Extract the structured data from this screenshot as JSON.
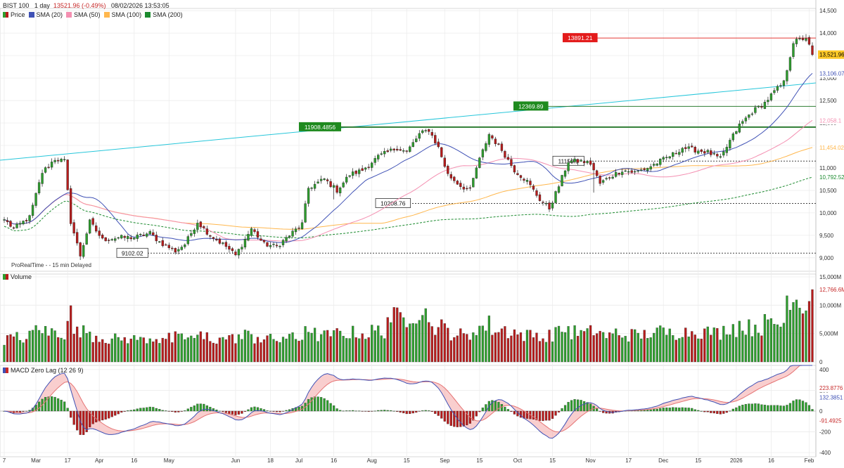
{
  "header": {
    "instrument": "BIST 100",
    "interval": "1 day",
    "last_change": "13521.96 (-0.49%)",
    "datetime": "08/02/2026 13:53:05"
  },
  "legend": [
    {
      "label": "Price",
      "color": "#2e7d32"
    },
    {
      "label": "SMA (20)",
      "color": "#3f51b5"
    },
    {
      "label": "SMA (50)",
      "color": "#f48fb1"
    },
    {
      "label": "SMA (100)",
      "color": "#ffb74d"
    },
    {
      "label": "SMA (200)",
      "color": "#1b8a2e"
    }
  ],
  "volume_legend": {
    "label": "Volume"
  },
  "macd_legend": {
    "label": "MACD Zero Lag (12 26 9)"
  },
  "source_note": "ProRealTime -  - 15 min Delayed",
  "colors": {
    "up": "#2e9e2e",
    "down": "#b71c1c",
    "sma20": "#3f51b5",
    "sma50": "#f48fb1",
    "sma100": "#ffb74d",
    "sma200": "#1b8a2e",
    "trendline": "#26c6da",
    "resistance": "#e53935",
    "level_green": "#2e7d32",
    "grid": "#ececec"
  },
  "chart_data": [
    {
      "type": "candlestick",
      "panel": "price",
      "y_ticks": [
        "14,500",
        "14,000",
        "13,500",
        "13,000",
        "12,500",
        "12,000",
        "11,500",
        "11,000",
        "10,500",
        "10,000",
        "9,500",
        "9,000"
      ],
      "ylim": [
        8700,
        14550
      ],
      "x_labels": [
        {
          "label": "7",
          "i": 0
        },
        {
          "label": "Mar",
          "i": 10
        },
        {
          "label": "17",
          "i": 20
        },
        {
          "label": "Apr",
          "i": 30
        },
        {
          "label": "16",
          "i": 41
        },
        {
          "label": "May",
          "i": 52
        },
        {
          "label": "Jun",
          "i": 73
        },
        {
          "label": "18",
          "i": 84
        },
        {
          "label": "Jul",
          "i": 93
        },
        {
          "label": "16",
          "i": 104
        },
        {
          "label": "Aug",
          "i": 116
        },
        {
          "label": "15",
          "i": 127
        },
        {
          "label": "Sep",
          "i": 139
        },
        {
          "label": "15",
          "i": 150
        },
        {
          "label": "Oct",
          "i": 162
        },
        {
          "label": "15",
          "i": 173
        },
        {
          "label": "Nov",
          "i": 185
        },
        {
          "label": "17",
          "i": 197
        },
        {
          "label": "Dec",
          "i": 208
        },
        {
          "label": "15",
          "i": 219
        },
        {
          "label": "2026",
          "i": 231
        },
        {
          "label": "16",
          "i": 242
        },
        {
          "label": "Feb",
          "i": 254
        }
      ],
      "levels": [
        {
          "label": "13891.21",
          "value": 13891.21,
          "style": "red-solid"
        },
        {
          "label": "12369.89",
          "value": 12369.89,
          "style": "green-solid"
        },
        {
          "label": "11908.4856",
          "value": 11908.49,
          "style": "green-solid-thick"
        },
        {
          "label": "11150.9",
          "value": 11150.9,
          "style": "dotted"
        },
        {
          "label": "10208.76",
          "value": 10208.76,
          "style": "dotted"
        },
        {
          "label": "9102.02",
          "value": 9102.02,
          "style": "dotted"
        }
      ],
      "last_price_label": "13,521.96",
      "sma_labels": [
        {
          "label": "13,106.07",
          "value": 13106.07,
          "color": "#3f51b5"
        },
        {
          "label": "12,058.1",
          "value": 12058.1,
          "color": "#f48fb1"
        },
        {
          "label": "11,454.02",
          "value": 11454.02,
          "color": "#ffb74d"
        },
        {
          "label": "10,792.52",
          "value": 10792.52,
          "color": "#1b8a2e"
        }
      ],
      "anchors": [
        [
          0,
          9850
        ],
        [
          3,
          9650
        ],
        [
          8,
          9900
        ],
        [
          12,
          10900
        ],
        [
          16,
          11200
        ],
        [
          19,
          11150
        ],
        [
          21,
          9800
        ],
        [
          24,
          9050
        ],
        [
          27,
          9800
        ],
        [
          31,
          9400
        ],
        [
          36,
          9450
        ],
        [
          41,
          9450
        ],
        [
          46,
          9550
        ],
        [
          49,
          9350
        ],
        [
          54,
          9150
        ],
        [
          57,
          9300
        ],
        [
          61,
          9800
        ],
        [
          65,
          9500
        ],
        [
          70,
          9250
        ],
        [
          73,
          9050
        ],
        [
          78,
          9650
        ],
        [
          82,
          9300
        ],
        [
          86,
          9250
        ],
        [
          90,
          9500
        ],
        [
          94,
          9750
        ],
        [
          96,
          10550
        ],
        [
          101,
          10750
        ],
        [
          105,
          10500
        ],
        [
          109,
          10850
        ],
        [
          113,
          10950
        ],
        [
          118,
          11250
        ],
        [
          124,
          11450
        ],
        [
          127,
          11350
        ],
        [
          131,
          11750
        ],
        [
          134,
          11850
        ],
        [
          137,
          11450
        ],
        [
          140,
          10850
        ],
        [
          144,
          10600
        ],
        [
          147,
          10500
        ],
        [
          149,
          11000
        ],
        [
          153,
          11750
        ],
        [
          157,
          11400
        ],
        [
          161,
          10950
        ],
        [
          165,
          10700
        ],
        [
          169,
          10300
        ],
        [
          172,
          10100
        ],
        [
          175,
          10600
        ],
        [
          178,
          11150
        ],
        [
          182,
          11150
        ],
        [
          185,
          11100
        ],
        [
          188,
          10650
        ],
        [
          191,
          10800
        ],
        [
          195,
          10950
        ],
        [
          199,
          10900
        ],
        [
          203,
          11000
        ],
        [
          207,
          11150
        ],
        [
          211,
          11300
        ],
        [
          214,
          11450
        ],
        [
          218,
          11400
        ],
        [
          222,
          11350
        ],
        [
          226,
          11200
        ],
        [
          229,
          11600
        ],
        [
          232,
          11950
        ],
        [
          236,
          12250
        ],
        [
          240,
          12450
        ],
        [
          243,
          12700
        ],
        [
          246,
          12900
        ],
        [
          249,
          13800
        ],
        [
          251,
          13850
        ],
        [
          253,
          13900
        ],
        [
          255,
          13521.96
        ]
      ]
    },
    {
      "type": "bar",
      "panel": "volume",
      "y_ticks": [
        "15,000M",
        "10,000M",
        "5,000M",
        "0"
      ],
      "ylim": [
        0,
        15000
      ],
      "last_label": "12,766.6M"
    },
    {
      "type": "histogram",
      "panel": "macd",
      "y_ticks": [
        "400",
        "200",
        "0",
        "-200",
        "-400"
      ],
      "ylim": [
        -440,
        440
      ],
      "labels": [
        {
          "label": "223.8776",
          "value": 223.88,
          "color": "#c62828"
        },
        {
          "label": "132.3851",
          "value": 132.39,
          "color": "#3f51b5"
        },
        {
          "label": "-91.4925",
          "value": -91.49,
          "color": "#c62828"
        }
      ]
    }
  ]
}
